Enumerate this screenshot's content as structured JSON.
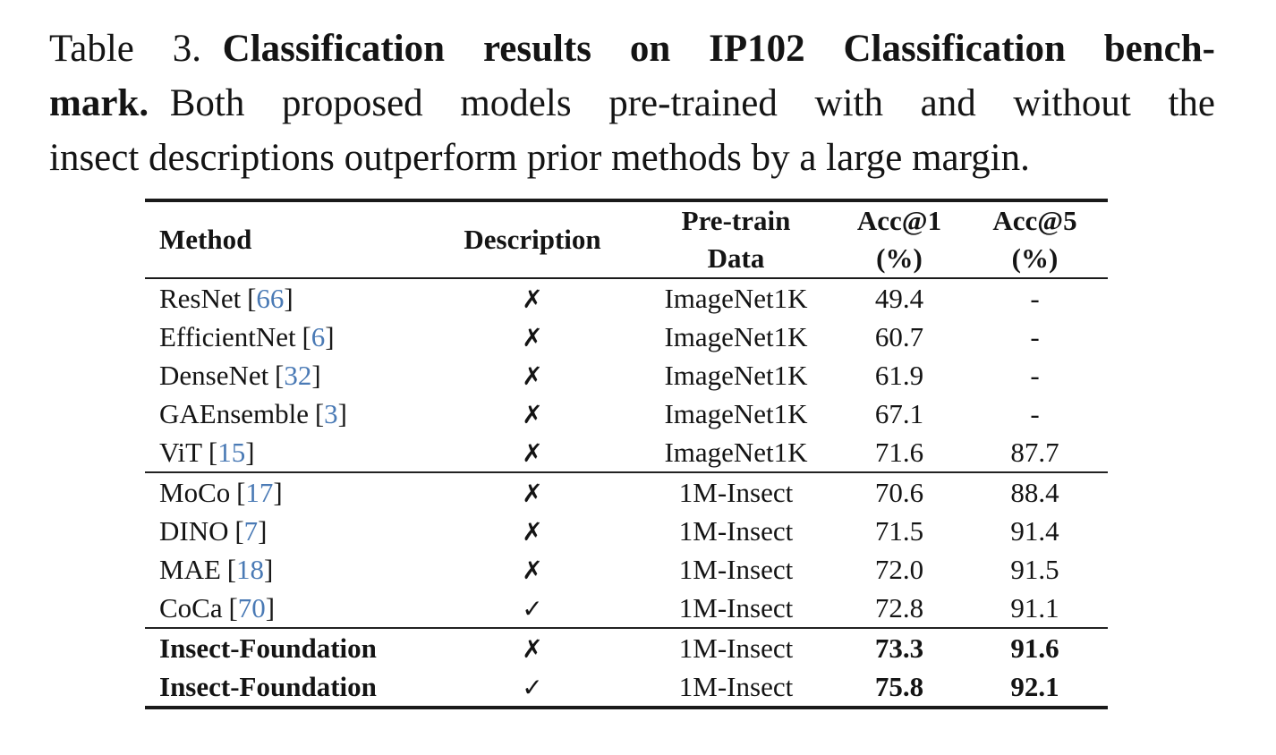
{
  "caption": {
    "label": "Table 3.",
    "title_part1": "Classification results on IP102 Classification bench-",
    "title_part2": "mark.",
    "body_line2": "Both proposed models pre-trained with and without the",
    "body_line3": "insect descriptions outperform prior methods by a large margin."
  },
  "colors": {
    "text": "#141414",
    "citation_blue": "#4a7ab5",
    "rule": "#1a1a1a",
    "background": "#ffffff"
  },
  "table": {
    "cite_open": "[",
    "cite_close": "]",
    "headers": [
      {
        "line1": "Method",
        "line2": ""
      },
      {
        "line1": "Description",
        "line2": ""
      },
      {
        "line1": "Pre-train",
        "line2": "Data"
      },
      {
        "line1": "Acc@1",
        "line2": "(%)"
      },
      {
        "line1": "Acc@5",
        "line2": "(%)"
      }
    ],
    "rows": [
      {
        "method": "ResNet",
        "cite": "66",
        "description": "✗",
        "pretrain": "ImageNet1K",
        "acc1": "49.4",
        "acc5": "-",
        "bold": false
      },
      {
        "method": "EfficientNet",
        "cite": "6",
        "description": "✗",
        "pretrain": "ImageNet1K",
        "acc1": "60.7",
        "acc5": "-",
        "bold": false
      },
      {
        "method": "DenseNet",
        "cite": "32",
        "description": "✗",
        "pretrain": "ImageNet1K",
        "acc1": "61.9",
        "acc5": "-",
        "bold": false
      },
      {
        "method": "GAEnsemble",
        "cite": "3",
        "description": "✗",
        "pretrain": "ImageNet1K",
        "acc1": "67.1",
        "acc5": "-",
        "bold": false
      },
      {
        "method": "ViT",
        "cite": "15",
        "description": "✗",
        "pretrain": "ImageNet1K",
        "acc1": "71.6",
        "acc5": "87.7",
        "bold": false
      },
      {
        "method": "MoCo",
        "cite": "17",
        "description": "✗",
        "pretrain": "1M-Insect",
        "acc1": "70.6",
        "acc5": "88.4",
        "bold": false
      },
      {
        "method": "DINO",
        "cite": "7",
        "description": "✗",
        "pretrain": "1M-Insect",
        "acc1": "71.5",
        "acc5": "91.4",
        "bold": false
      },
      {
        "method": "MAE",
        "cite": "18",
        "description": "✗",
        "pretrain": "1M-Insect",
        "acc1": "72.0",
        "acc5": "91.5",
        "bold": false
      },
      {
        "method": "CoCa",
        "cite": "70",
        "description": "✓",
        "pretrain": "1M-Insect",
        "acc1": "72.8",
        "acc5": "91.1",
        "bold": false
      },
      {
        "method": "Insect-Foundation",
        "cite": "",
        "description": "✗",
        "pretrain": "1M-Insect",
        "acc1": "73.3",
        "acc5": "91.6",
        "bold": true
      },
      {
        "method": "Insect-Foundation",
        "cite": "",
        "description": "✓",
        "pretrain": "1M-Insect",
        "acc1": "75.8",
        "acc5": "92.1",
        "bold": true
      }
    ]
  }
}
